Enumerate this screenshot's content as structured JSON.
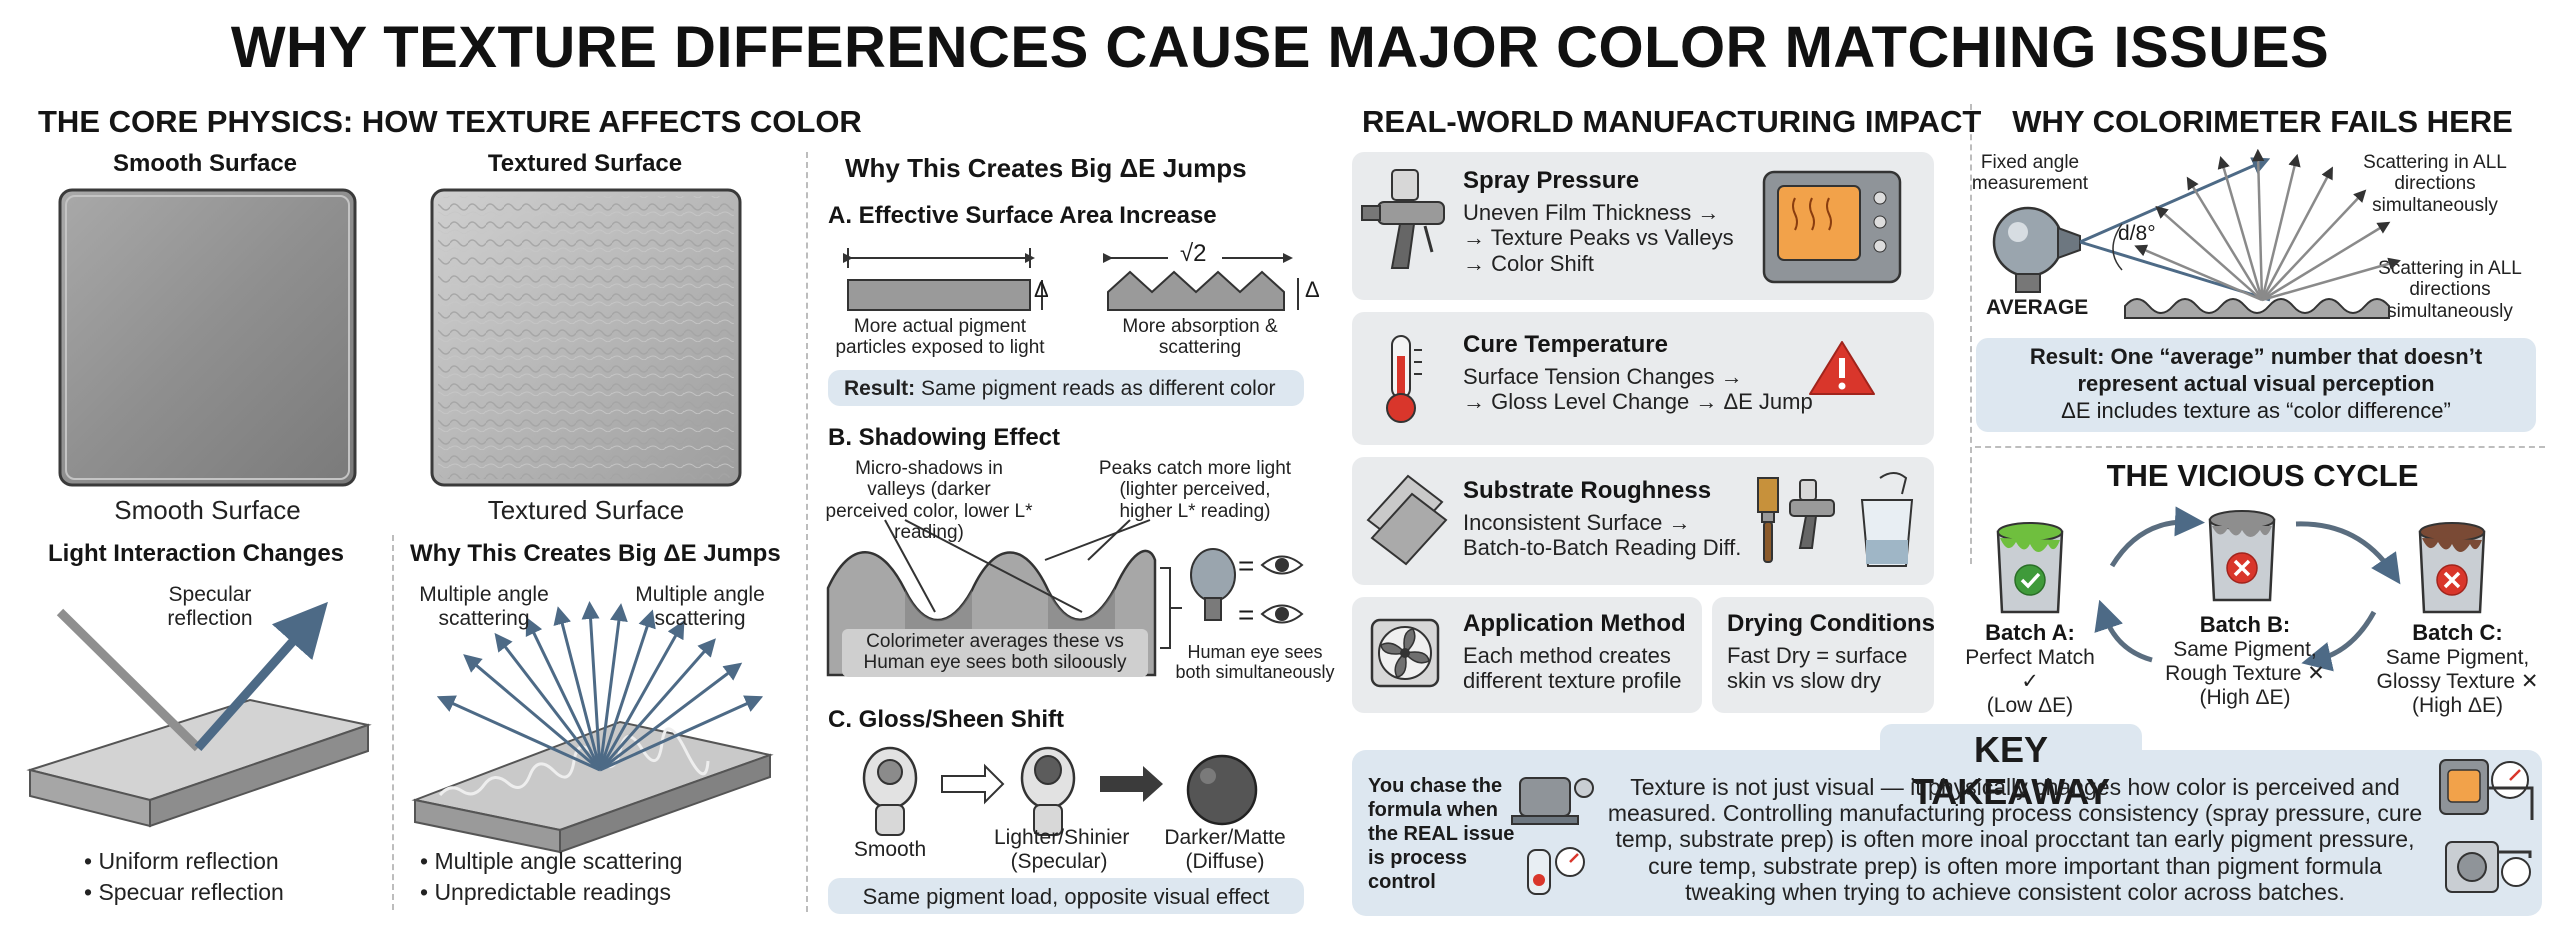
{
  "title": "WHY TEXTURE DIFFERENCES CAUSE MAJOR COLOR MATCHING ISSUES",
  "core": {
    "heading": "THE CORE PHYSICS: HOW TEXTURE AFFECTS COLOR",
    "smooth_label": "Smooth Surface",
    "textured_label": "Textured Surface",
    "smooth_caption": "Smooth Surface",
    "textured_caption": "Textured Surface",
    "light_heading": "Light Interaction Changes",
    "specular": "Specular reflection",
    "smooth_bullets": [
      "• Uniform reflection",
      "• Specuar reflection"
    ],
    "why_heading": "Why This Creates Big ΔE Jumps",
    "scatter_left": "Multiple angle scattering",
    "scatter_right": "Multiple angle scattering",
    "textured_bullets": [
      "• Multiple angle scattering",
      "• Unpredictable readings"
    ]
  },
  "why": {
    "heading": "Why This Creates Big ΔE Jumps",
    "a_heading": "A. Effective Surface Area Increase",
    "sqrt_label": "√2",
    "delta": "Δ",
    "flat_caption": "More actual pigment particles exposed to light",
    "zigzag_caption": "More absorption & scattering",
    "result_bold": "Result:",
    "result_text": "Same pigment reads as different color",
    "b_heading": "B. Shadowing Effect",
    "shadow_left": "Micro-shadows in valleys (darker perceived color, lower L* reading)",
    "shadow_right": "Peaks catch more light (lighter perceived, higher L* reading)",
    "colorimeter_note": "Colorimeter averages these vs Human eye sees both siloously",
    "eye_caption": "Human eye sees both simultaneously",
    "equals": "=",
    "c_heading": "C. Gloss/Sheen Shift",
    "gloss_smooth": "Smooth",
    "gloss_lighter": "Lighter/Shinier (Specular)",
    "gloss_darker": "Darker/Matte (Diffuse)",
    "gloss_note": "Same pigment load, opposite visual effect"
  },
  "impact": {
    "heading": "REAL-WORLD MANUFACTURING IMPACT",
    "spray": {
      "title": "Spray Pressure",
      "lines": [
        "Uneven Film Thickness →",
        "→ Texture Peaks vs Valleys",
        "→ Color Shift"
      ]
    },
    "cure": {
      "title": "Cure Temperature",
      "lines": [
        "Surface Tension Changes →",
        "→ Gloss Level Change → ΔE Jump"
      ]
    },
    "substrate": {
      "title": "Substrate Roughness",
      "lines": [
        "Inconsistent Surface →",
        "Batch-to-Batch Reading Diff."
      ]
    },
    "application": {
      "title": "Application Method",
      "lines": [
        "Each method creates",
        "different texture profile"
      ]
    },
    "drying": {
      "title": "Drying Conditions",
      "lines": [
        "Fast Dry = surface",
        "skin vs slow dry"
      ]
    }
  },
  "colorimeter": {
    "heading": "WHY COLORIMETER FAILS HERE",
    "fixed_angle": "Fixed angle measurement",
    "angle": "d/8°",
    "average": "AVERAGE",
    "scatter_top": "Scattering in ALL directions simultaneously",
    "scatter_mid": "Scattering in ALL directions simultaneously",
    "result_line1": "Result: One “average” number that doesn’t",
    "result_line2": "represent actual visual perception",
    "result_line3": "ΔE includes texture as “color difference”"
  },
  "cycle": {
    "heading": "THE VICIOUS CYCLE",
    "batch_a": {
      "title": "Batch A:",
      "lines": [
        "Perfect Match ✓",
        "(Low ΔE)"
      ]
    },
    "batch_b": {
      "title": "Batch B:",
      "lines": [
        "Same Pigment,",
        "Rough Texture ✕",
        "(High ΔE)"
      ]
    },
    "batch_c": {
      "title": "Batch C:",
      "lines": [
        "Same Pigment,",
        "Glossy Texture ✕",
        "(High ΔE)"
      ]
    }
  },
  "takeaway": {
    "heading": "KEY TAKEAWAY",
    "side": "You chase the formula when the REAL issue is process control",
    "body": "Texture is not just visual — it physically changes how color is perceived and measured. Controlling manufacturing process consistency (spray pressure, cure temp, substrate prep) is often more inoal procctant tan early pigment pressure, cure temp, substrate prep) is often more important than pigment formula tweaking when trying to achieve consistent color across batches."
  },
  "colors": {
    "accent_blue": "#4a6c8c",
    "pill_bg": "#dde7f0",
    "card_bg": "#e9ebed",
    "green": "#3f9a3a",
    "red": "#d9362b"
  }
}
